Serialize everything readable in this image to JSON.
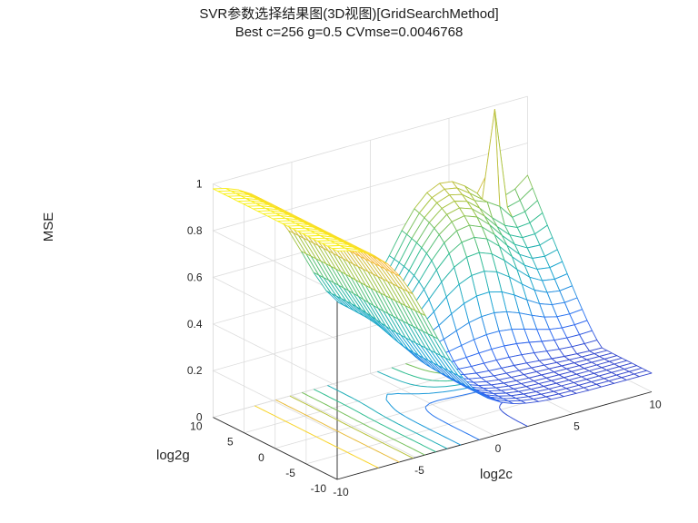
{
  "chart_data": {
    "type": "surface3d",
    "title": "SVR参数选择结果图(3D视图)[GridSearchMethod]",
    "subtitle": "Best c=256 g=0.5 CVmse=0.0046768",
    "xlabel": "log2c",
    "ylabel": "log2g",
    "zlabel": "MSE",
    "xlim": [
      -10,
      10
    ],
    "ylim": [
      -10,
      10
    ],
    "zlim": [
      0,
      1
    ],
    "xticks": [
      -10,
      -5,
      0,
      5,
      10
    ],
    "yticks": [
      -10,
      -5,
      0,
      5,
      10
    ],
    "zticks": [
      0,
      0.2,
      0.4,
      0.6,
      0.8,
      1
    ],
    "grid": true,
    "colormap": [
      "#3e26a8",
      "#2c6cf5",
      "#16a4d2",
      "#2fbd8f",
      "#a7c33c",
      "#f8ba3d",
      "#f9fb0e"
    ],
    "contour_levels": [
      0.1,
      0.2,
      0.3,
      0.4,
      0.5,
      0.6,
      0.7,
      0.8,
      0.9
    ],
    "grid_step": 0.8,
    "best": {
      "log2c": 8,
      "log2g": -1,
      "mse": 0.0046768
    }
  }
}
